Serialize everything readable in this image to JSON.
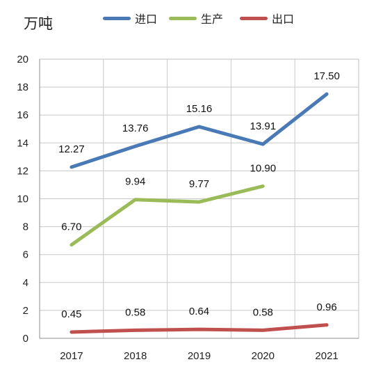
{
  "chart_data": {
    "type": "line",
    "unit_label": "万吨",
    "categories": [
      "2017",
      "2018",
      "2019",
      "2020",
      "2021"
    ],
    "series": [
      {
        "name": "进口",
        "color": "#4a7ab6",
        "values": [
          12.27,
          13.76,
          15.16,
          13.91,
          17.5
        ],
        "labels": [
          "12.27",
          "13.76",
          "15.16",
          "13.91",
          "17.50"
        ]
      },
      {
        "name": "生产",
        "color": "#9bbb59",
        "values": [
          6.7,
          9.94,
          9.77,
          10.9,
          null
        ],
        "labels": [
          "6.70",
          "9.94",
          "9.77",
          "10.90",
          null
        ]
      },
      {
        "name": "出口",
        "color": "#c0504d",
        "values": [
          0.45,
          0.58,
          0.64,
          0.58,
          0.96
        ],
        "labels": [
          "0.45",
          "0.58",
          "0.64",
          "0.58",
          "0.96"
        ]
      }
    ],
    "ylim": [
      0,
      20
    ],
    "yticks": [
      "0",
      "2",
      "4",
      "6",
      "8",
      "10",
      "12",
      "14",
      "16",
      "18",
      "20"
    ],
    "grid": true,
    "legend_position": "top"
  }
}
